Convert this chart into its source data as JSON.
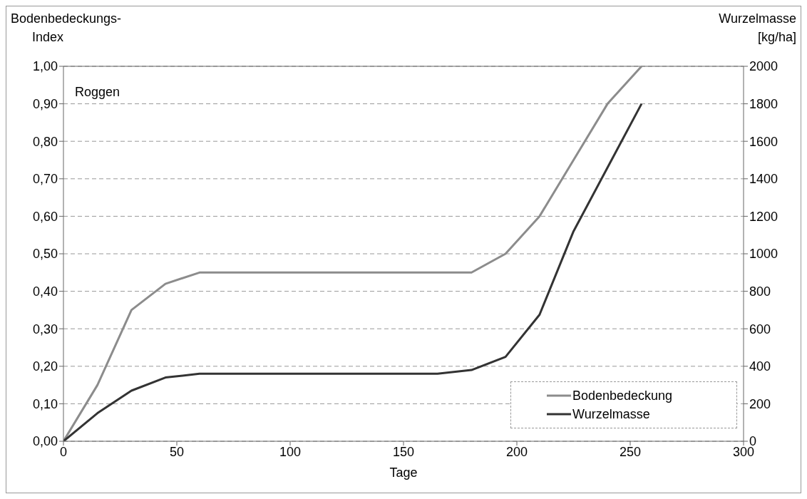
{
  "chart_data": {
    "type": "line",
    "xlabel": "Tage",
    "ylabel": "Bodenbedeckungs-\nIndex",
    "y2label": "Wurzelmasse\n[kg/ha]",
    "annotations": [
      "Roggen"
    ],
    "x": [
      0,
      15,
      30,
      45,
      60,
      75,
      90,
      105,
      120,
      135,
      150,
      165,
      180,
      195,
      210,
      225,
      240,
      255
    ],
    "series": [
      {
        "name": "Bodenbedeckung",
        "color": "#8c8c8c",
        "values": [
          0,
          0.15,
          0.35,
          0.42,
          0.45,
          0.45,
          0.45,
          0.45,
          0.45,
          0.45,
          0.45,
          0.45,
          0.45,
          0.5,
          0.6,
          0.75,
          0.9,
          1.0
        ]
      },
      {
        "name": "Wurzelmasse",
        "color": "#333333",
        "axis": "y2",
        "values": [
          0,
          150,
          270,
          340,
          360,
          360,
          360,
          360,
          360,
          360,
          360,
          360,
          380,
          450,
          675,
          1120,
          1460,
          1800
        ]
      }
    ],
    "xlim": [
      0,
      300
    ],
    "xticks": [
      0,
      50,
      100,
      150,
      200,
      250,
      300
    ],
    "ylim": [
      0,
      1
    ],
    "yticks": [
      {
        "value": 0,
        "label": "0,00"
      },
      {
        "value": 0.1,
        "label": "0,10"
      },
      {
        "value": 0.2,
        "label": "0,20"
      },
      {
        "value": 0.3,
        "label": "0,30"
      },
      {
        "value": 0.4,
        "label": "0,40"
      },
      {
        "value": 0.5,
        "label": "0,50"
      },
      {
        "value": 0.6,
        "label": "0,60"
      },
      {
        "value": 0.7,
        "label": "0,70"
      },
      {
        "value": 0.8,
        "label": "0,80"
      },
      {
        "value": 0.9,
        "label": "0,90"
      },
      {
        "value": 1,
        "label": "1,00"
      }
    ],
    "y2lim": [
      0,
      2000
    ],
    "y2ticks": [
      0,
      200,
      400,
      600,
      800,
      1000,
      1200,
      1400,
      1600,
      1800,
      2000
    ],
    "grid": "y",
    "legend": "bottom right",
    "marker": "none",
    "line_style": "solid"
  }
}
